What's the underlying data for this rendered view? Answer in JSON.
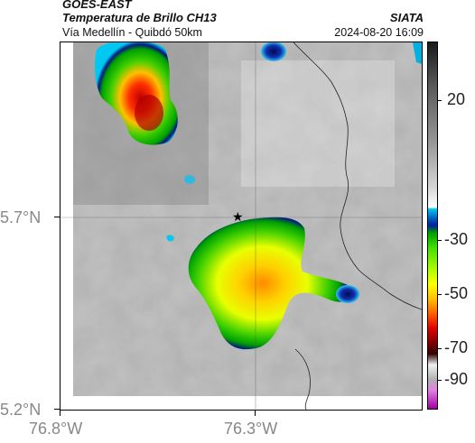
{
  "header": {
    "satellite": "GOES-EAST",
    "product": "Temperatura de Brillo CH13",
    "region": "Vía Medellín - Quibdó 50km",
    "organization": "SIATA",
    "datetime": "2024-08-20 16:09"
  },
  "map": {
    "lat_ticks": [
      "5.7°N",
      "5.2°N"
    ],
    "lon_ticks": [
      "76.8°W",
      "76.3°W"
    ],
    "marker": "★",
    "marker_icon": "star-icon",
    "gridlines": true
  },
  "colorbar": {
    "ticks": [
      "20",
      "-30",
      "-50",
      "-70",
      "-90"
    ],
    "unit_range": [
      30,
      -95
    ],
    "colors": {
      "warm_dark": "#2a2a2a",
      "warm_gray": "#9a9a9a",
      "white": "#ffffff",
      "cyan": "#00b8e8",
      "blue": "#0020a0",
      "green": "#00c000",
      "yellow": "#ffff00",
      "orange": "#ff8000",
      "red": "#e00000",
      "maroon": "#500000",
      "magenta": "#d030c0"
    }
  }
}
